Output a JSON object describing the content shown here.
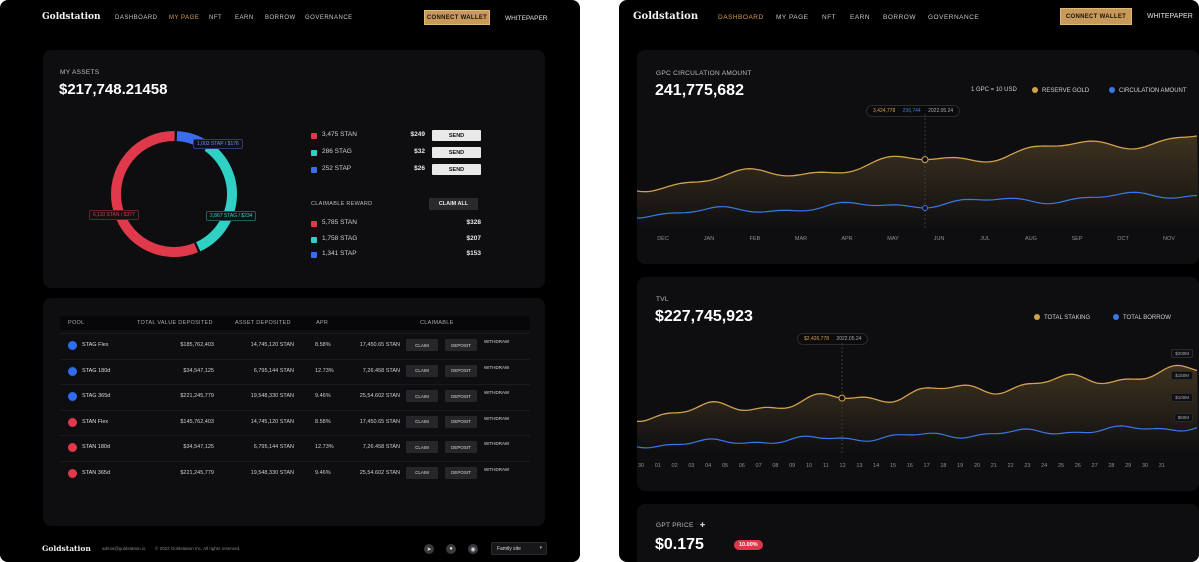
{
  "left": {
    "nav": {
      "logo": "Goldstation",
      "links": [
        "DASHBOARD",
        "MY PAGE",
        "NFT",
        "EARN",
        "BORROW",
        "GOVERNANCE"
      ],
      "active_index": 1,
      "connect_wallet": "CONNECT WALLET",
      "whitepaper": "WHITEPAPER"
    },
    "assets": {
      "label": "MY ASSETS",
      "total": "$217,748.21458",
      "tokens": [
        {
          "amount": "3,475 STAN",
          "usd": "$249",
          "action": "SEND",
          "color": "#e0394b"
        },
        {
          "amount": "286 STAG",
          "usd": "$32",
          "action": "SEND",
          "color": "#2ed1c4"
        },
        {
          "amount": "252 STAP",
          "usd": "$26",
          "action": "SEND",
          "color": "#3b6cf0"
        }
      ],
      "claimable_label": "CLAIMABLE REWARD",
      "claim_all": "CLAIM ALL",
      "rewards": [
        {
          "amount": "5,785 STAN",
          "usd": "$328",
          "color": "#e0394b"
        },
        {
          "amount": "1,758 STAG",
          "usd": "$207",
          "color": "#2ed1c4"
        },
        {
          "amount": "1,341 STAP",
          "usd": "$153",
          "color": "#3b6cf0"
        }
      ],
      "donut": {
        "segments": [
          {
            "name": "STAP",
            "fraction": 0.09,
            "color": "#3b6cf0"
          },
          {
            "name": "STAG",
            "fraction": 0.34,
            "color": "#2ed1c4"
          },
          {
            "name": "STAN",
            "fraction": 0.57,
            "color": "#e0394b"
          }
        ],
        "tags": {
          "stap": "1,003 STAP / $176",
          "stag": "2,867 STAG / $234",
          "stan": "6,110 STAN / $377"
        }
      }
    },
    "pools": {
      "headers": [
        "POOL",
        "TOTAL VALUE DEPOSITED",
        "ASSET DEPOSITED",
        "APR",
        "CLAIMABLE"
      ],
      "claim_label": "CLAIM",
      "deposit_label": "DEPOSIT",
      "withdraw_label": "WITHDRAW",
      "rows": [
        {
          "name": "STAG Flex",
          "tvd": "$185,762,403",
          "asset": "14,745,120 STAN",
          "apr": "8.58%",
          "claimable": "17,450.65 STAN",
          "icon": "stag"
        },
        {
          "name": "STAG 180d",
          "tvd": "$34,547,125",
          "asset": "6,795,144 STAN",
          "apr": "12.73%",
          "claimable": "7,26.458 STAN",
          "icon": "stag"
        },
        {
          "name": "STAG 365d",
          "tvd": "$221,245,779",
          "asset": "19,548,330 STAN",
          "apr": "9.46%",
          "claimable": "25,54.602 STAN",
          "icon": "stag"
        },
        {
          "name": "STAN Flex",
          "tvd": "$145,762,403",
          "asset": "14,745,120 STAN",
          "apr": "8.58%",
          "claimable": "17,450.65 STAN",
          "icon": "stan"
        },
        {
          "name": "STAN 180d",
          "tvd": "$34,547,125",
          "asset": "6,795,144 STAN",
          "apr": "12.73%",
          "claimable": "7,26.458 STAN",
          "icon": "stan"
        },
        {
          "name": "STAN 365d",
          "tvd": "$221,245,779",
          "asset": "19,548,330 STAN",
          "apr": "9.46%",
          "claimable": "25,54.602 STAN",
          "icon": "stan"
        }
      ]
    },
    "footer": {
      "logo": "Goldstation",
      "email": "admin@goldstation.io",
      "copyright": "© 2022 Goldstation Inc. All rights reserved.",
      "icons": [
        "telegram-icon",
        "discord-icon",
        "medium-icon"
      ],
      "family_site": "Family site"
    }
  },
  "right": {
    "nav": {
      "logo": "Goldstation",
      "links": [
        "DASHBOARD",
        "MY PAGE",
        "NFT",
        "EARN",
        "BORROW",
        "GOVERNANCE"
      ],
      "active_index": 0,
      "connect_wallet": "CONNECT WALLET",
      "whitepaper": "WHITEPAPER"
    },
    "circulation": {
      "label": "GPC CIRCULATION AMOUNT",
      "value": "241,775,682",
      "ratio": "1 GPC = 10 USD",
      "legend": [
        {
          "name": "RESERVE GOLD",
          "color": "#d2a14e"
        },
        {
          "name": "CIRCULATION AMOUNT",
          "color": "#3b78e7"
        }
      ],
      "tooltip": {
        "gold": "3,424,778",
        "blue": "236,744",
        "date": "2022.05.24"
      },
      "months": [
        "DEC",
        "JAN",
        "FEB",
        "MAR",
        "APR",
        "MAY",
        "JUN",
        "JUL",
        "AUG",
        "SEP",
        "OCT",
        "NOV"
      ]
    },
    "tvl": {
      "label": "TVL",
      "value": "$227,745,923",
      "legend": [
        {
          "name": "TOTAL STAKING",
          "color": "#d2a14e"
        },
        {
          "name": "TOTAL BORROW",
          "color": "#3b78e7"
        }
      ],
      "tooltip": {
        "gold": "$2,426,778",
        "date": "2022.05.24"
      },
      "y_ticks": [
        "$200M",
        "$150M",
        "$100M",
        "$50M"
      ],
      "days": [
        "30",
        "01",
        "02",
        "03",
        "04",
        "05",
        "06",
        "07",
        "08",
        "09",
        "10",
        "11",
        "12",
        "13",
        "14",
        "15",
        "16",
        "17",
        "18",
        "19",
        "20",
        "21",
        "22",
        "23",
        "24",
        "25",
        "26",
        "27",
        "28",
        "29",
        "30",
        "31"
      ]
    },
    "price": {
      "label": "GPT PRICE",
      "value": "$0.175",
      "change": "10.00%"
    }
  },
  "colors": {
    "gold": "#d2a14e",
    "blue": "#3b78e7",
    "red": "#e0394b",
    "teal": "#2ed1c4"
  }
}
